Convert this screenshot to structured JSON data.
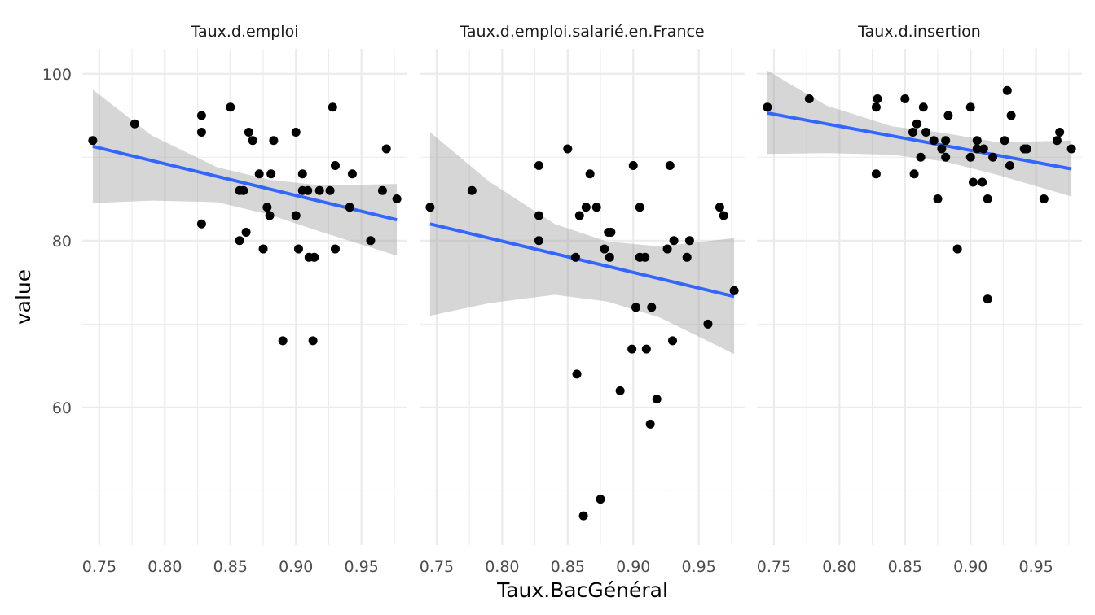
{
  "chart_data": {
    "type": "scatter",
    "xlabel": "Taux.BacGénéral",
    "ylabel": "value",
    "xlim": [
      0.737,
      0.985
    ],
    "ylim": [
      43.5,
      103
    ],
    "x_ticks": [
      0.75,
      0.8,
      0.85,
      0.9,
      0.95
    ],
    "x_tick_labels": [
      "0.75",
      "0.80",
      "0.85",
      "0.90",
      "0.95"
    ],
    "y_ticks": [
      60,
      80,
      100
    ],
    "y_tick_labels": [
      "60",
      "80",
      "100"
    ],
    "grid": true,
    "colors": {
      "points": "#000000",
      "fit_line": "#3366ff",
      "ribbon": "#999999",
      "grid": "#ebebeb"
    },
    "panels": [
      {
        "name": "Taux.d.emploi",
        "points": [
          [
            0.745,
            92
          ],
          [
            0.777,
            94
          ],
          [
            0.828,
            95
          ],
          [
            0.828,
            93
          ],
          [
            0.828,
            82
          ],
          [
            0.85,
            96
          ],
          [
            0.857,
            86
          ],
          [
            0.857,
            80
          ],
          [
            0.86,
            86
          ],
          [
            0.862,
            81
          ],
          [
            0.864,
            93
          ],
          [
            0.867,
            92
          ],
          [
            0.872,
            88
          ],
          [
            0.875,
            79
          ],
          [
            0.878,
            84
          ],
          [
            0.88,
            83
          ],
          [
            0.881,
            88
          ],
          [
            0.883,
            92
          ],
          [
            0.89,
            68
          ],
          [
            0.9,
            93
          ],
          [
            0.9,
            83
          ],
          [
            0.902,
            79
          ],
          [
            0.905,
            86
          ],
          [
            0.905,
            88
          ],
          [
            0.909,
            86
          ],
          [
            0.91,
            78
          ],
          [
            0.913,
            68
          ],
          [
            0.914,
            78
          ],
          [
            0.918,
            86
          ],
          [
            0.926,
            86
          ],
          [
            0.928,
            96
          ],
          [
            0.93,
            89
          ],
          [
            0.93,
            79
          ],
          [
            0.941,
            84
          ],
          [
            0.943,
            88
          ],
          [
            0.957,
            80
          ],
          [
            0.966,
            86
          ],
          [
            0.969,
            91
          ],
          [
            0.977,
            85
          ]
        ],
        "fit": {
          "x": [
            0.745,
            0.977
          ],
          "y": [
            91.3,
            82.5
          ]
        },
        "band": {
          "x": [
            0.745,
            0.79,
            0.84,
            0.88,
            0.92,
            0.977
          ],
          "upper": [
            98.1,
            92.6,
            88.8,
            87.3,
            86.6,
            86.8
          ],
          "lower": [
            84.5,
            84.8,
            84.6,
            83.1,
            81.0,
            78.2
          ]
        }
      },
      {
        "name": "Taux.d.emploi.salarié.en.France",
        "points": [
          [
            0.745,
            84
          ],
          [
            0.777,
            86
          ],
          [
            0.828,
            89
          ],
          [
            0.828,
            83
          ],
          [
            0.828,
            80
          ],
          [
            0.85,
            91
          ],
          [
            0.856,
            78
          ],
          [
            0.857,
            64
          ],
          [
            0.859,
            83
          ],
          [
            0.862,
            47
          ],
          [
            0.864,
            84
          ],
          [
            0.867,
            88
          ],
          [
            0.872,
            84
          ],
          [
            0.875,
            49
          ],
          [
            0.878,
            79
          ],
          [
            0.881,
            81
          ],
          [
            0.882,
            78
          ],
          [
            0.883,
            81
          ],
          [
            0.89,
            62
          ],
          [
            0.899,
            67
          ],
          [
            0.9,
            89
          ],
          [
            0.902,
            72
          ],
          [
            0.905,
            84
          ],
          [
            0.905,
            78
          ],
          [
            0.909,
            78
          ],
          [
            0.91,
            67
          ],
          [
            0.913,
            58
          ],
          [
            0.914,
            72
          ],
          [
            0.918,
            61
          ],
          [
            0.926,
            79
          ],
          [
            0.928,
            89
          ],
          [
            0.93,
            68
          ],
          [
            0.931,
            80
          ],
          [
            0.941,
            78
          ],
          [
            0.943,
            80
          ],
          [
            0.957,
            70
          ],
          [
            0.966,
            84
          ],
          [
            0.969,
            83
          ],
          [
            0.977,
            74
          ]
        ],
        "fit": {
          "x": [
            0.745,
            0.977
          ],
          "y": [
            82.0,
            73.3
          ]
        },
        "band": {
          "x": [
            0.745,
            0.79,
            0.84,
            0.88,
            0.92,
            0.977
          ],
          "upper": [
            93.0,
            87.1,
            82.0,
            79.9,
            79.3,
            80.3
          ],
          "lower": [
            71.0,
            72.5,
            73.5,
            72.7,
            70.8,
            66.4
          ]
        }
      },
      {
        "name": "Taux.d.insertion",
        "points": [
          [
            0.745,
            96
          ],
          [
            0.777,
            97
          ],
          [
            0.828,
            96
          ],
          [
            0.829,
            97
          ],
          [
            0.828,
            88
          ],
          [
            0.85,
            97
          ],
          [
            0.856,
            93
          ],
          [
            0.857,
            88
          ],
          [
            0.859,
            94
          ],
          [
            0.862,
            90
          ],
          [
            0.864,
            96
          ],
          [
            0.866,
            93
          ],
          [
            0.872,
            92
          ],
          [
            0.875,
            85
          ],
          [
            0.878,
            91
          ],
          [
            0.881,
            90
          ],
          [
            0.881,
            92
          ],
          [
            0.883,
            95
          ],
          [
            0.89,
            79
          ],
          [
            0.9,
            96
          ],
          [
            0.9,
            90
          ],
          [
            0.902,
            87
          ],
          [
            0.905,
            92
          ],
          [
            0.905,
            91
          ],
          [
            0.909,
            87
          ],
          [
            0.91,
            91
          ],
          [
            0.913,
            85
          ],
          [
            0.913,
            73
          ],
          [
            0.917,
            90
          ],
          [
            0.926,
            92
          ],
          [
            0.928,
            98
          ],
          [
            0.93,
            89
          ],
          [
            0.931,
            95
          ],
          [
            0.941,
            91
          ],
          [
            0.943,
            91
          ],
          [
            0.956,
            85
          ],
          [
            0.966,
            92
          ],
          [
            0.968,
            93
          ],
          [
            0.977,
            91
          ]
        ],
        "fit": {
          "x": [
            0.745,
            0.977
          ],
          "y": [
            95.3,
            88.6
          ]
        },
        "band": {
          "x": [
            0.745,
            0.79,
            0.84,
            0.88,
            0.92,
            0.977
          ],
          "upper": [
            100.4,
            96.2,
            93.7,
            92.9,
            91.8,
            92.0
          ],
          "lower": [
            90.4,
            90.5,
            90.3,
            89.5,
            87.9,
            85.3
          ]
        }
      }
    ]
  }
}
